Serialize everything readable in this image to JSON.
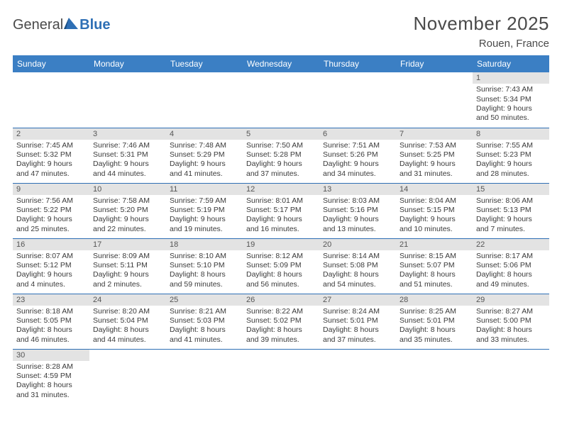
{
  "logo": {
    "text1": "General",
    "text2": "Blue"
  },
  "title": "November 2025",
  "location": "Rouen, France",
  "colors": {
    "header_bg": "#3b7fc4",
    "header_text": "#ffffff",
    "daynum_bg": "#e3e3e3",
    "row_divider": "#2e6fb5",
    "text": "#3a3a3a",
    "logo_blue": "#2e6fb5"
  },
  "layout": {
    "columns": 7,
    "weeks": 6,
    "cell_fontsize_pt": 8,
    "header_fontsize_pt": 9
  },
  "dow": [
    "Sunday",
    "Monday",
    "Tuesday",
    "Wednesday",
    "Thursday",
    "Friday",
    "Saturday"
  ],
  "labels": {
    "sunrise": "Sunrise:",
    "sunset": "Sunset:",
    "daylight": "Daylight:"
  },
  "weeks": [
    [
      {
        "blank": true
      },
      {
        "blank": true
      },
      {
        "blank": true
      },
      {
        "blank": true
      },
      {
        "blank": true
      },
      {
        "blank": true
      },
      {
        "day": 1,
        "sunrise": "7:43 AM",
        "sunset": "5:34 PM",
        "daylight": "9 hours and 50 minutes."
      }
    ],
    [
      {
        "day": 2,
        "sunrise": "7:45 AM",
        "sunset": "5:32 PM",
        "daylight": "9 hours and 47 minutes."
      },
      {
        "day": 3,
        "sunrise": "7:46 AM",
        "sunset": "5:31 PM",
        "daylight": "9 hours and 44 minutes."
      },
      {
        "day": 4,
        "sunrise": "7:48 AM",
        "sunset": "5:29 PM",
        "daylight": "9 hours and 41 minutes."
      },
      {
        "day": 5,
        "sunrise": "7:50 AM",
        "sunset": "5:28 PM",
        "daylight": "9 hours and 37 minutes."
      },
      {
        "day": 6,
        "sunrise": "7:51 AM",
        "sunset": "5:26 PM",
        "daylight": "9 hours and 34 minutes."
      },
      {
        "day": 7,
        "sunrise": "7:53 AM",
        "sunset": "5:25 PM",
        "daylight": "9 hours and 31 minutes."
      },
      {
        "day": 8,
        "sunrise": "7:55 AM",
        "sunset": "5:23 PM",
        "daylight": "9 hours and 28 minutes."
      }
    ],
    [
      {
        "day": 9,
        "sunrise": "7:56 AM",
        "sunset": "5:22 PM",
        "daylight": "9 hours and 25 minutes."
      },
      {
        "day": 10,
        "sunrise": "7:58 AM",
        "sunset": "5:20 PM",
        "daylight": "9 hours and 22 minutes."
      },
      {
        "day": 11,
        "sunrise": "7:59 AM",
        "sunset": "5:19 PM",
        "daylight": "9 hours and 19 minutes."
      },
      {
        "day": 12,
        "sunrise": "8:01 AM",
        "sunset": "5:17 PM",
        "daylight": "9 hours and 16 minutes."
      },
      {
        "day": 13,
        "sunrise": "8:03 AM",
        "sunset": "5:16 PM",
        "daylight": "9 hours and 13 minutes."
      },
      {
        "day": 14,
        "sunrise": "8:04 AM",
        "sunset": "5:15 PM",
        "daylight": "9 hours and 10 minutes."
      },
      {
        "day": 15,
        "sunrise": "8:06 AM",
        "sunset": "5:13 PM",
        "daylight": "9 hours and 7 minutes."
      }
    ],
    [
      {
        "day": 16,
        "sunrise": "8:07 AM",
        "sunset": "5:12 PM",
        "daylight": "9 hours and 4 minutes."
      },
      {
        "day": 17,
        "sunrise": "8:09 AM",
        "sunset": "5:11 PM",
        "daylight": "9 hours and 2 minutes."
      },
      {
        "day": 18,
        "sunrise": "8:10 AM",
        "sunset": "5:10 PM",
        "daylight": "8 hours and 59 minutes."
      },
      {
        "day": 19,
        "sunrise": "8:12 AM",
        "sunset": "5:09 PM",
        "daylight": "8 hours and 56 minutes."
      },
      {
        "day": 20,
        "sunrise": "8:14 AM",
        "sunset": "5:08 PM",
        "daylight": "8 hours and 54 minutes."
      },
      {
        "day": 21,
        "sunrise": "8:15 AM",
        "sunset": "5:07 PM",
        "daylight": "8 hours and 51 minutes."
      },
      {
        "day": 22,
        "sunrise": "8:17 AM",
        "sunset": "5:06 PM",
        "daylight": "8 hours and 49 minutes."
      }
    ],
    [
      {
        "day": 23,
        "sunrise": "8:18 AM",
        "sunset": "5:05 PM",
        "daylight": "8 hours and 46 minutes."
      },
      {
        "day": 24,
        "sunrise": "8:20 AM",
        "sunset": "5:04 PM",
        "daylight": "8 hours and 44 minutes."
      },
      {
        "day": 25,
        "sunrise": "8:21 AM",
        "sunset": "5:03 PM",
        "daylight": "8 hours and 41 minutes."
      },
      {
        "day": 26,
        "sunrise": "8:22 AM",
        "sunset": "5:02 PM",
        "daylight": "8 hours and 39 minutes."
      },
      {
        "day": 27,
        "sunrise": "8:24 AM",
        "sunset": "5:01 PM",
        "daylight": "8 hours and 37 minutes."
      },
      {
        "day": 28,
        "sunrise": "8:25 AM",
        "sunset": "5:01 PM",
        "daylight": "8 hours and 35 minutes."
      },
      {
        "day": 29,
        "sunrise": "8:27 AM",
        "sunset": "5:00 PM",
        "daylight": "8 hours and 33 minutes."
      }
    ],
    [
      {
        "day": 30,
        "sunrise": "8:28 AM",
        "sunset": "4:59 PM",
        "daylight": "8 hours and 31 minutes."
      },
      {
        "blank": true
      },
      {
        "blank": true
      },
      {
        "blank": true
      },
      {
        "blank": true
      },
      {
        "blank": true
      },
      {
        "blank": true
      }
    ]
  ]
}
